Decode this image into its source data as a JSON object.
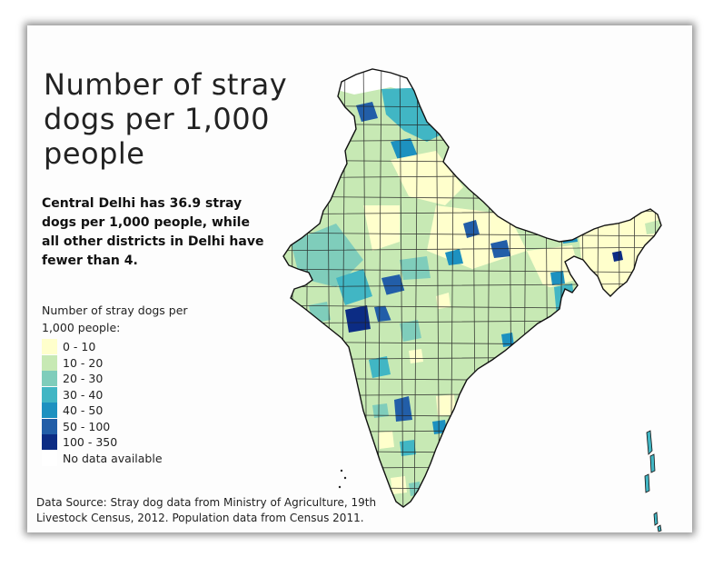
{
  "title": "Number of stray dogs per 1,000 people",
  "subtitle": "Central Delhi has 36.9 stray dogs per 1,000 people, while all other districts in Delhi have fewer than 4.",
  "legend": {
    "title": "Number of stray dogs per 1,000 people:",
    "items": [
      {
        "label": "0 - 10",
        "color": "#ffffcc"
      },
      {
        "label": "10 - 20",
        "color": "#c7e9b4"
      },
      {
        "label": "20 - 30",
        "color": "#7fcdbb"
      },
      {
        "label": "30 - 40",
        "color": "#41b6c4"
      },
      {
        "label": "40 - 50",
        "color": "#1d91c0"
      },
      {
        "label": "50 - 100",
        "color": "#225ea8"
      },
      {
        "label": "100 - 350",
        "color": "#0c2c84"
      },
      {
        "label": "No data available",
        "color": "#ffffff"
      }
    ]
  },
  "source": "Data Source: Stray dog data from Ministry of Agriculture, 19th Livestock Census, 2012. Population data from Census 2011.",
  "map": {
    "region": "India",
    "unit": "district",
    "border_color": "#222222"
  }
}
